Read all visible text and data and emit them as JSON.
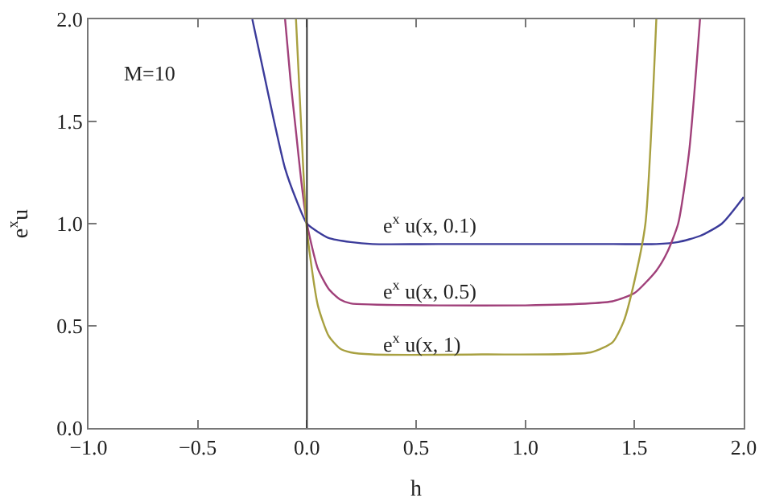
{
  "chart_data": {
    "type": "line",
    "xlabel": "h",
    "ylabel": "e$^{x}$u",
    "xlim": [
      -1,
      2
    ],
    "ylim": [
      0,
      2
    ],
    "xticks": [
      {
        "value": -1,
        "label": "−1.0"
      },
      {
        "value": -0.5,
        "label": "−0.5"
      },
      {
        "value": 0,
        "label": "0.0"
      },
      {
        "value": 0.5,
        "label": "0.5"
      },
      {
        "value": 1,
        "label": "1.0"
      },
      {
        "value": 1.5,
        "label": "1.5"
      },
      {
        "value": 2,
        "label": "2.0"
      }
    ],
    "yticks": [
      {
        "value": 0,
        "label": "0.0"
      },
      {
        "value": 0.5,
        "label": "0.5"
      },
      {
        "value": 1,
        "label": "1.0"
      },
      {
        "value": 1.5,
        "label": "1.5"
      },
      {
        "value": 2,
        "label": "2.0"
      }
    ],
    "grid": false,
    "marker": "none",
    "line_style": "solid",
    "series": [
      {
        "color": "#3b3b9a",
        "x": [
          -0.25,
          -0.2,
          -0.15,
          -0.1,
          -0.05,
          0,
          0.05,
          0.1,
          0.2,
          0.3,
          0.6,
          1.0,
          1.4,
          1.6,
          1.7,
          1.8,
          1.9,
          2.0
        ],
        "values": [
          2.0,
          1.75,
          1.5,
          1.27,
          1.12,
          1.0,
          0.96,
          0.93,
          0.91,
          0.9,
          0.9,
          0.9,
          0.9,
          0.9,
          0.91,
          0.94,
          1.0,
          1.13
        ]
      },
      {
        "color": "#a0407a",
        "x": [
          -0.1,
          -0.075,
          -0.05,
          -0.025,
          0,
          0.05,
          0.1,
          0.15,
          0.2,
          0.6,
          1.0,
          1.3,
          1.4,
          1.5,
          1.6,
          1.65,
          1.7,
          1.75,
          1.8
        ],
        "values": [
          2.0,
          1.7,
          1.45,
          1.2,
          1.0,
          0.78,
          0.68,
          0.63,
          0.61,
          0.6,
          0.6,
          0.61,
          0.62,
          0.66,
          0.77,
          0.86,
          1.0,
          1.35,
          2.0
        ]
      },
      {
        "color": "#a8a040",
        "x": [
          -0.05,
          -0.025,
          0,
          0.05,
          0.1,
          0.15,
          0.2,
          0.3,
          0.8,
          1.3,
          1.4,
          1.45,
          1.5,
          1.55,
          1.6
        ],
        "values": [
          2.0,
          1.45,
          0.97,
          0.6,
          0.45,
          0.39,
          0.37,
          0.36,
          0.36,
          0.37,
          0.42,
          0.52,
          0.72,
          1.0,
          2.0
        ]
      }
    ],
    "ref_lines": [
      {
        "axis": "x",
        "value": 0,
        "color": "#333333"
      }
    ],
    "annotations": [
      "M=10",
      "e$^{x}$ u(x, 0.1)",
      "e$^{x}$ u(x, 0.5)",
      "e$^{x}$ u(x, 1)"
    ]
  }
}
